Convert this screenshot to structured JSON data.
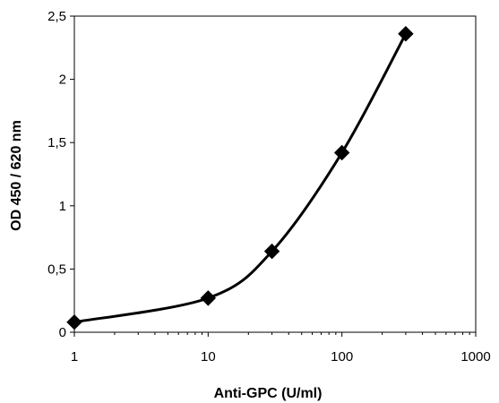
{
  "chart_data": {
    "type": "scatter",
    "title": "",
    "xlabel": "Anti-GPC  (U/ml)",
    "ylabel": "OD 450 / 620 nm",
    "x_scale": "log",
    "xlim": [
      1,
      1000
    ],
    "ylim": [
      0,
      2.5
    ],
    "x_ticks": [
      1,
      10,
      100,
      1000
    ],
    "x_tick_labels": [
      "1",
      "10",
      "100",
      "1000"
    ],
    "y_ticks": [
      0,
      0.5,
      1,
      1.5,
      2,
      2.5
    ],
    "y_tick_labels": [
      "0",
      "0,5",
      "1",
      "1,5",
      "2",
      "2,5"
    ],
    "grid": false,
    "legend": "none",
    "marker": "diamond",
    "line": "smooth",
    "colors": {
      "series": "#000000",
      "axis": "#000000"
    },
    "series": [
      {
        "x": [
          1,
          10,
          30,
          100,
          300
        ],
        "y": [
          0.08,
          0.27,
          0.64,
          1.42,
          2.36
        ]
      }
    ]
  }
}
